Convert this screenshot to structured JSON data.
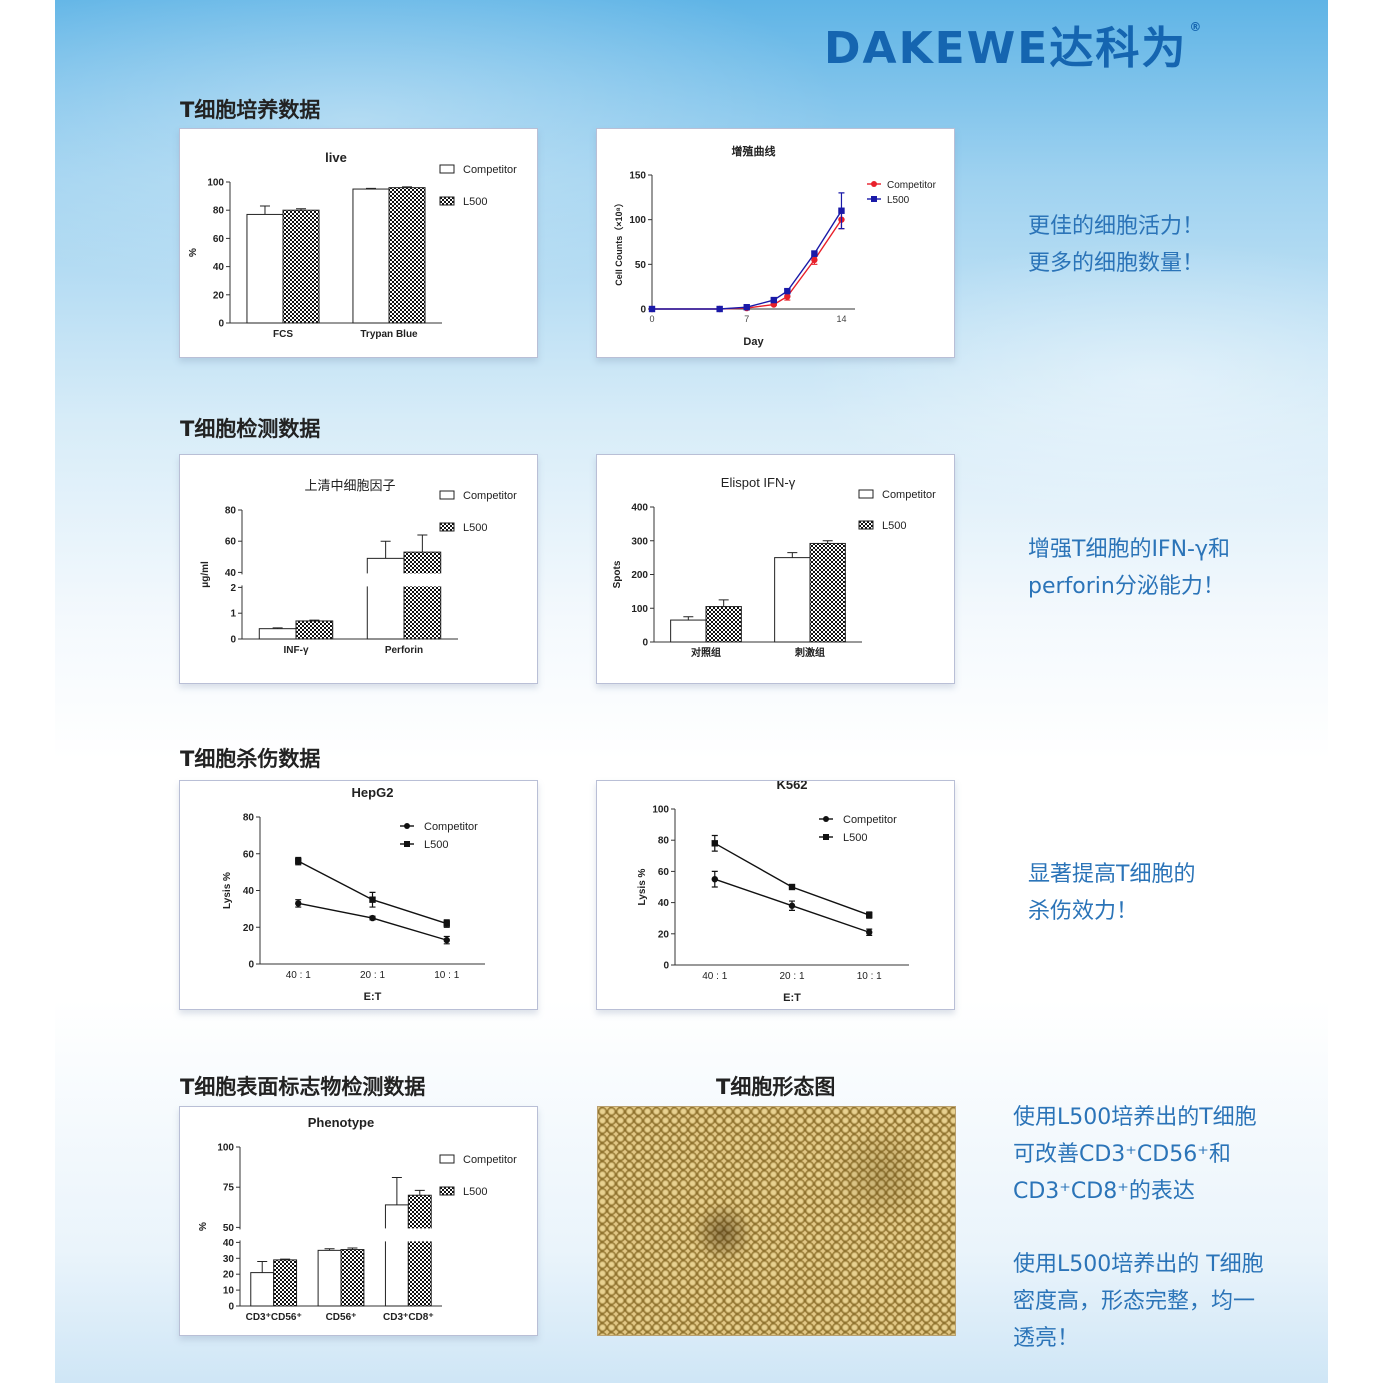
{
  "logo": {
    "text": "DAKEWE达科为",
    "registered": "®"
  },
  "sections": {
    "culture": "T细胞培养数据",
    "detection": "T细胞检测数据",
    "killing": "T细胞杀伤数据",
    "surface": "T细胞表面标志物检测数据",
    "morphology": "T细胞形态图"
  },
  "side_text": {
    "culture": [
      "更佳的细胞活力！",
      "更多的细胞数量！"
    ],
    "detection": [
      "增强T细胞的IFN-γ和",
      "perforin分泌能力！"
    ],
    "killing": [
      "显著提高T细胞的",
      "杀伤效力！"
    ],
    "surface": [
      "使用L500培养出的T细胞",
      "可改善CD3⁺CD56⁺和",
      "CD3⁺CD8⁺的表达"
    ],
    "morphology": [
      "使用L500培养出的 T细胞",
      "密度高，形态完整，均一",
      "透亮！"
    ]
  },
  "colors": {
    "brand": "#1565b0",
    "side_text": "#2b74b8",
    "competitor_line": "#e8202a",
    "l500_line": "#1a1aa8"
  },
  "chart_data": [
    {
      "type": "bar",
      "title": "live",
      "ylabel": "%",
      "xlabel": "",
      "categories": [
        "FCS",
        "Trypan Blue"
      ],
      "ylim": [
        0,
        100
      ],
      "yticks": [
        0,
        20,
        40,
        60,
        80,
        100
      ],
      "series": [
        {
          "name": "Competitor",
          "values": [
            77,
            95
          ],
          "errors": [
            6,
            0.5
          ],
          "fill": "open"
        },
        {
          "name": "L500",
          "values": [
            80,
            96
          ],
          "errors": [
            1,
            0.5
          ],
          "fill": "checker"
        }
      ],
      "legend": "top-right"
    },
    {
      "type": "line",
      "title": "增殖曲线",
      "ylabel": "Cell Counts（×10⁸）",
      "xlabel": "Day",
      "x": [
        0,
        5,
        7,
        9,
        10,
        12,
        14
      ],
      "xlim": [
        0,
        15
      ],
      "xticks": [
        0,
        7,
        14
      ],
      "ylim": [
        0,
        150
      ],
      "yticks": [
        0,
        50,
        100,
        150
      ],
      "series": [
        {
          "name": "Competitor",
          "values": [
            0,
            0,
            1,
            5,
            14,
            55,
            100
          ],
          "errors": [
            0,
            0,
            1,
            1,
            4,
            5,
            10
          ],
          "marker": "circle",
          "color": "#e8202a"
        },
        {
          "name": "L500",
          "values": [
            0,
            0,
            2,
            10,
            20,
            62,
            110
          ],
          "errors": [
            0,
            0,
            1,
            1,
            2,
            3,
            20
          ],
          "marker": "square",
          "color": "#1a1aa8"
        }
      ],
      "legend": "top-right"
    },
    {
      "type": "bar",
      "title": "上清中细胞因子",
      "ylabel": "μg/ml",
      "xlabel": "",
      "categories": [
        "INF-γ",
        "Perforin"
      ],
      "axis_break": {
        "lower": [
          0,
          2
        ],
        "upper": [
          40,
          80
        ]
      },
      "yticks": [
        0,
        1,
        2,
        40,
        60,
        80
      ],
      "series": [
        {
          "name": "Competitor",
          "values": [
            0.4,
            49
          ],
          "errors": [
            0.03,
            11
          ],
          "fill": "open"
        },
        {
          "name": "L500",
          "values": [
            0.7,
            53
          ],
          "errors": [
            0.03,
            11
          ],
          "fill": "checker"
        }
      ],
      "legend": "top-right"
    },
    {
      "type": "bar",
      "title": "Elispot IFN-γ",
      "ylabel": "Spots",
      "xlabel": "",
      "categories": [
        "对照组",
        "刺激组"
      ],
      "ylim": [
        0,
        400
      ],
      "yticks": [
        0,
        100,
        200,
        300,
        400
      ],
      "series": [
        {
          "name": "Competitor",
          "values": [
            65,
            250
          ],
          "errors": [
            10,
            15
          ],
          "fill": "open"
        },
        {
          "name": "L500",
          "values": [
            105,
            292
          ],
          "errors": [
            20,
            8
          ],
          "fill": "checker"
        }
      ],
      "legend": "top-right"
    },
    {
      "type": "line",
      "title": "HepG2",
      "ylabel": "Lysis %",
      "xlabel": "E:T",
      "categories": [
        "40 : 1",
        "20 : 1",
        "10 : 1"
      ],
      "ylim": [
        0,
        80
      ],
      "yticks": [
        0,
        20,
        40,
        60,
        80
      ],
      "series": [
        {
          "name": "Competitor",
          "values": [
            33,
            25,
            13
          ],
          "errors": [
            2,
            1,
            2
          ],
          "marker": "circle",
          "color": "#111"
        },
        {
          "name": "L500",
          "values": [
            56,
            35,
            22
          ],
          "errors": [
            2,
            4,
            2
          ],
          "marker": "square",
          "color": "#111"
        }
      ],
      "legend": "top-right"
    },
    {
      "type": "line",
      "title": "K562",
      "ylabel": "Lysis %",
      "xlabel": "E:T",
      "categories": [
        "40 : 1",
        "20 : 1",
        "10 : 1"
      ],
      "ylim": [
        0,
        100
      ],
      "yticks": [
        0,
        20,
        40,
        60,
        80,
        100
      ],
      "series": [
        {
          "name": "Competitor",
          "values": [
            55,
            38,
            21
          ],
          "errors": [
            5,
            3,
            2
          ],
          "marker": "circle",
          "color": "#111"
        },
        {
          "name": "L500",
          "values": [
            78,
            50,
            32
          ],
          "errors": [
            5,
            1,
            2
          ],
          "marker": "square",
          "color": "#111"
        }
      ],
      "legend": "top-right"
    },
    {
      "type": "bar",
      "title": "Phenotype",
      "ylabel": "%",
      "xlabel": "",
      "categories": [
        "CD3⁺CD56⁺",
        "CD56⁺",
        "CD3⁺CD8⁺"
      ],
      "axis_break": {
        "lower": [
          0,
          40
        ],
        "upper": [
          50,
          100
        ]
      },
      "yticks": [
        0,
        10,
        20,
        30,
        40,
        50,
        75,
        100
      ],
      "series": [
        {
          "name": "Competitor",
          "values": [
            21,
            35,
            64
          ],
          "errors": [
            7,
            1,
            17
          ],
          "fill": "open"
        },
        {
          "name": "L500",
          "values": [
            29,
            35.5,
            70
          ],
          "errors": [
            0.5,
            1,
            3
          ],
          "fill": "checker"
        }
      ],
      "legend": "top-right"
    }
  ]
}
